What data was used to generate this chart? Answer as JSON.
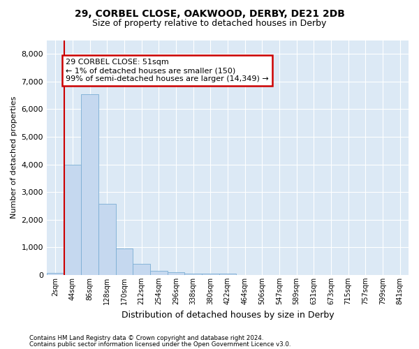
{
  "title1": "29, CORBEL CLOSE, OAKWOOD, DERBY, DE21 2DB",
  "title2": "Size of property relative to detached houses in Derby",
  "xlabel": "Distribution of detached houses by size in Derby",
  "ylabel": "Number of detached properties",
  "footnote1": "Contains HM Land Registry data © Crown copyright and database right 2024.",
  "footnote2": "Contains public sector information licensed under the Open Government Licence v3.0.",
  "annotation_line1": "29 CORBEL CLOSE: 51sqm",
  "annotation_line2": "← 1% of detached houses are smaller (150)",
  "annotation_line3": "99% of semi-detached houses are larger (14,349) →",
  "bar_color": "#c5d8ef",
  "bar_edge_color": "#7aadd4",
  "highlight_color": "#cc0000",
  "background_color": "#dce9f5",
  "grid_color": "#ffffff",
  "categories": [
    "2sqm",
    "44sqm",
    "86sqm",
    "128sqm",
    "170sqm",
    "212sqm",
    "254sqm",
    "296sqm",
    "338sqm",
    "380sqm",
    "422sqm",
    "464sqm",
    "506sqm",
    "547sqm",
    "589sqm",
    "631sqm",
    "673sqm",
    "715sqm",
    "757sqm",
    "799sqm",
    "841sqm"
  ],
  "values": [
    70,
    4000,
    6550,
    2580,
    950,
    390,
    145,
    95,
    55,
    45,
    45,
    5,
    5,
    5,
    5,
    5,
    5,
    5,
    5,
    5,
    5
  ],
  "ylim": [
    0,
    8500
  ],
  "yticks": [
    0,
    1000,
    2000,
    3000,
    4000,
    5000,
    6000,
    7000,
    8000
  ],
  "red_line_x": 0.5,
  "figsize": [
    6.0,
    5.0
  ],
  "dpi": 100
}
